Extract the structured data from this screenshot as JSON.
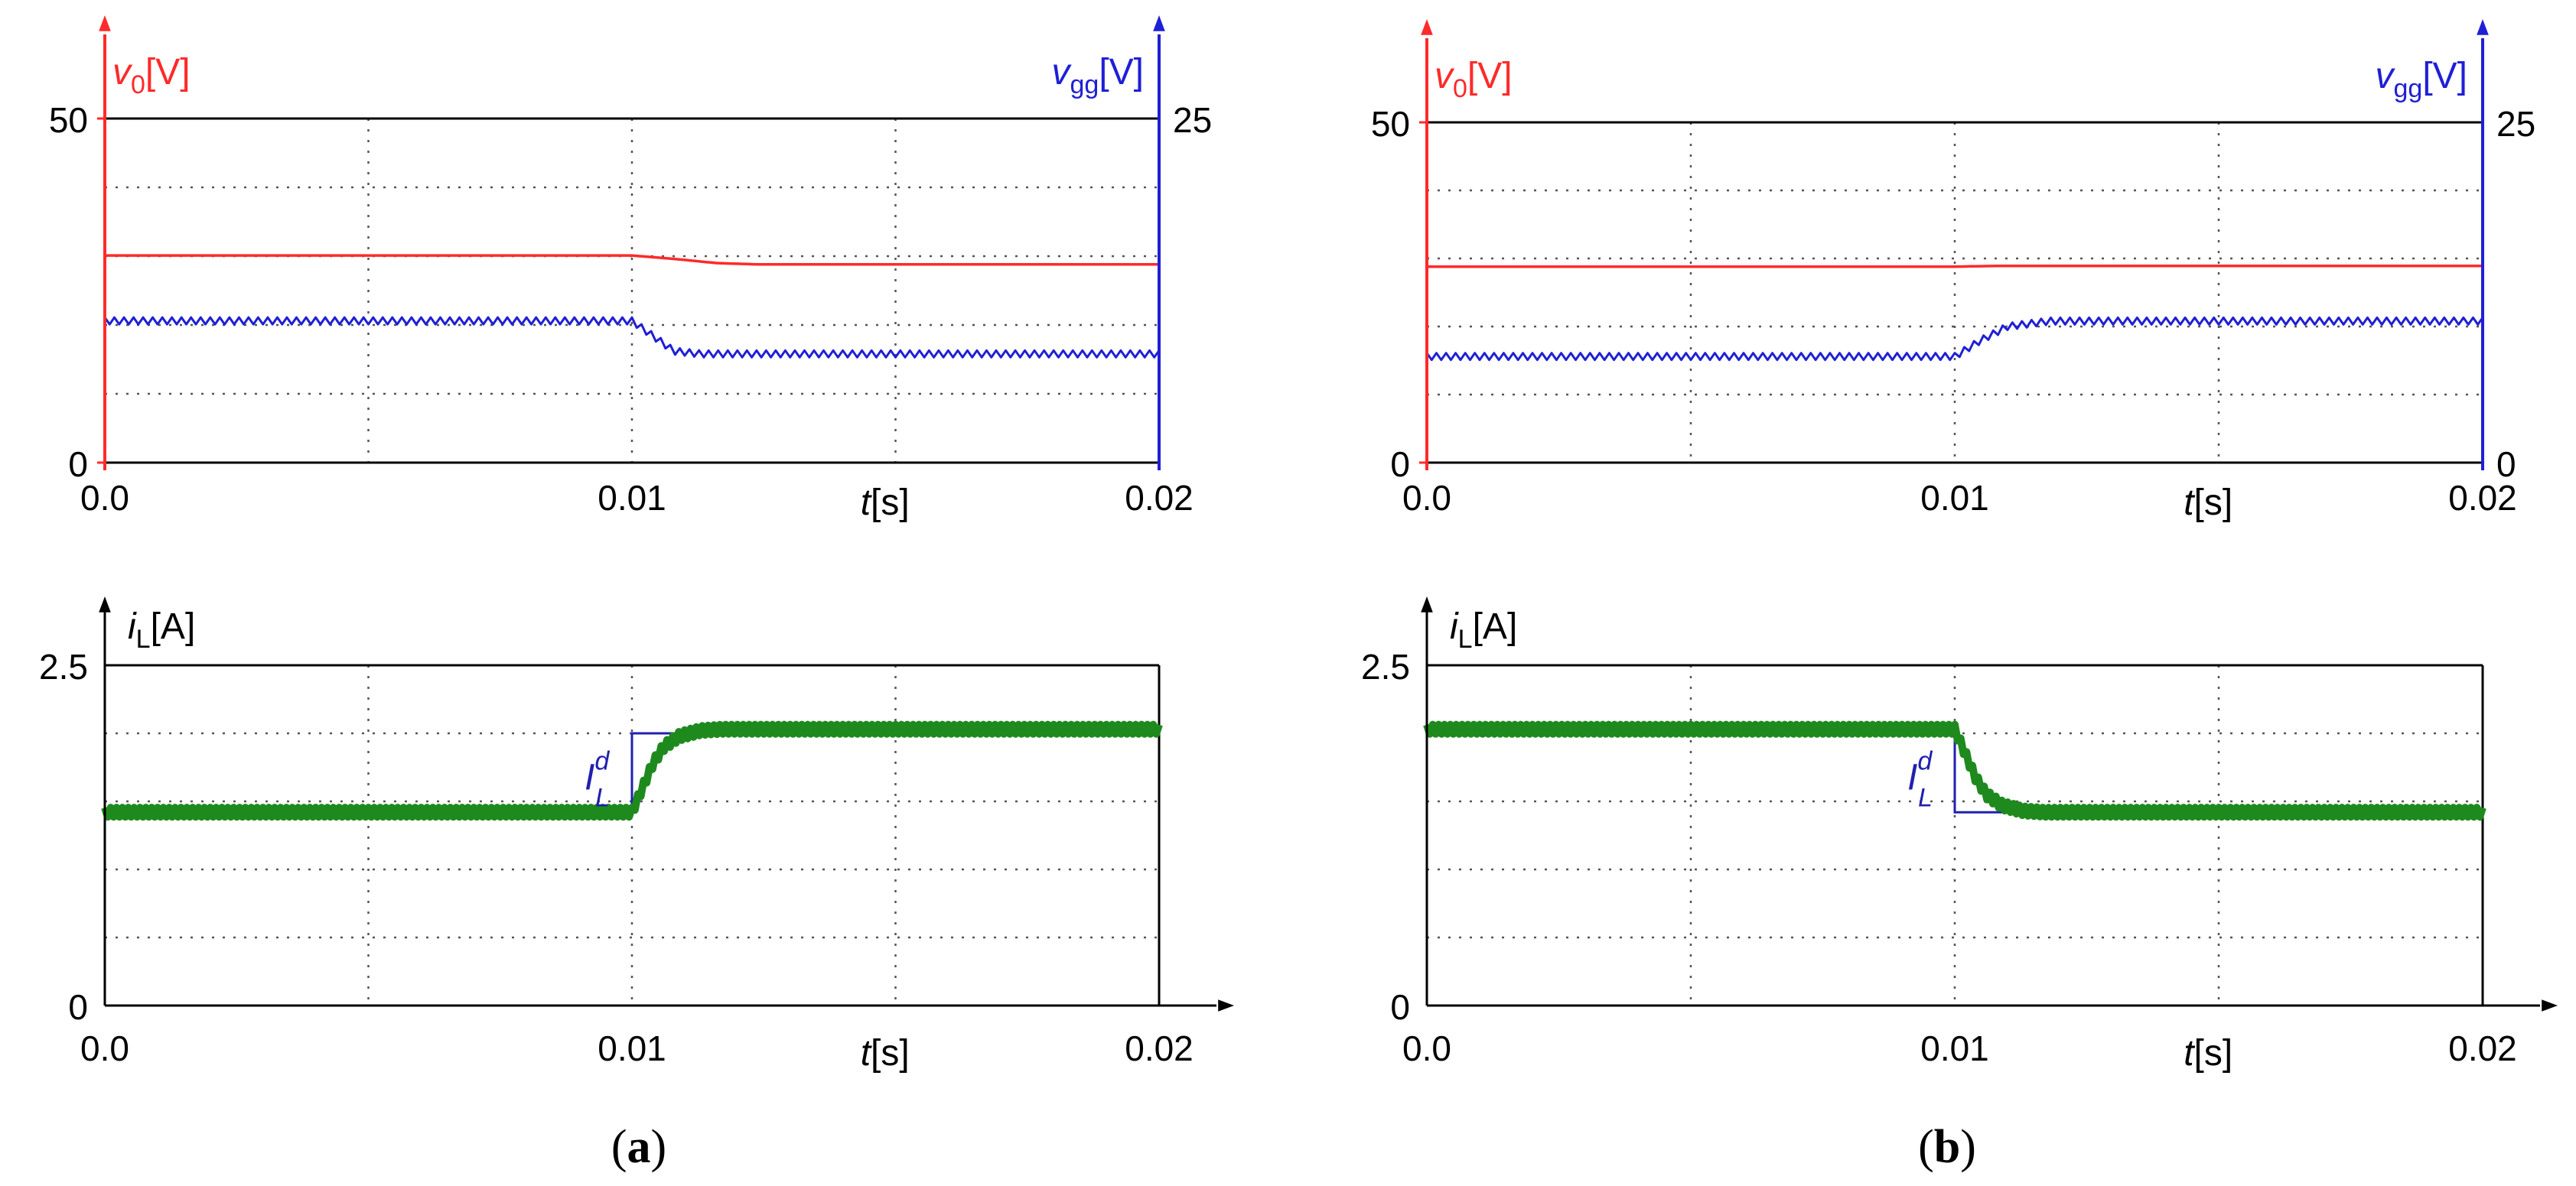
{
  "colors": {
    "v0": "#ff2a2a",
    "vgg": "#1f1fd6",
    "iL": "#1e8a1e",
    "annotation": "#2020b0",
    "axis": "#000000",
    "grid": "#555555"
  },
  "panels": [
    {
      "id": "a",
      "caption": {
        "open": "(",
        "letter": "a",
        "close": ")"
      },
      "voltage_plot": {
        "left_label": {
          "var": "v",
          "sub": "0",
          "unit": "[V]"
        },
        "right_label": {
          "var": "v",
          "sub": "gg",
          "unit": "[V]"
        },
        "left_ticks": [
          {
            "value": 50,
            "label": "50"
          },
          {
            "value": 0,
            "label": "0"
          }
        ],
        "right_ticks": [
          {
            "value": 25,
            "label": "25"
          }
        ],
        "x_ticks": [
          {
            "value": 0.0,
            "label": "0.0"
          },
          {
            "value": 0.01,
            "label": "0.01"
          },
          {
            "value": 0.02,
            "label": "0.02"
          }
        ],
        "xlabel": {
          "var": "t",
          "unit": "[s]"
        }
      },
      "current_plot": {
        "label": {
          "var": "i",
          "sub": "L",
          "unit": "[A]"
        },
        "y_ticks": [
          {
            "value": 2.5,
            "label": "2.5"
          },
          {
            "value": 0,
            "label": "0"
          }
        ],
        "x_ticks": [
          {
            "value": 0.0,
            "label": "0.0"
          },
          {
            "value": 0.01,
            "label": "0.01"
          },
          {
            "value": 0.02,
            "label": "0.02"
          }
        ],
        "xlabel": {
          "var": "t",
          "unit": "[s]"
        },
        "annotation": {
          "var": "I",
          "sub": "L",
          "sup": "d"
        }
      }
    },
    {
      "id": "b",
      "caption": {
        "open": "(",
        "letter": "b",
        "close": ")"
      },
      "voltage_plot": {
        "left_label": {
          "var": "v",
          "sub": "0",
          "unit": "[V]"
        },
        "right_label": {
          "var": "v",
          "sub": "gg",
          "unit": "[V]"
        },
        "left_ticks": [
          {
            "value": 50,
            "label": "50"
          },
          {
            "value": 0,
            "label": "0"
          }
        ],
        "right_ticks": [
          {
            "value": 25,
            "label": "25"
          },
          {
            "value": 0,
            "label": "0"
          }
        ],
        "x_ticks": [
          {
            "value": 0.0,
            "label": "0.0"
          },
          {
            "value": 0.01,
            "label": "0.01"
          },
          {
            "value": 0.02,
            "label": "0.02"
          }
        ],
        "xlabel": {
          "var": "t",
          "unit": "[s]"
        }
      },
      "current_plot": {
        "label": {
          "var": "i",
          "sub": "L",
          "unit": "[A]"
        },
        "y_ticks": [
          {
            "value": 2.5,
            "label": "2.5"
          },
          {
            "value": 0,
            "label": "0"
          }
        ],
        "x_ticks": [
          {
            "value": 0.0,
            "label": "0.0"
          },
          {
            "value": 0.01,
            "label": "0.01"
          },
          {
            "value": 0.02,
            "label": "0.02"
          }
        ],
        "xlabel": {
          "var": "t",
          "unit": "[s]"
        },
        "annotation": {
          "var": "I",
          "sub": "L",
          "sup": "d"
        }
      }
    }
  ],
  "chart_data": [
    {
      "panel": "a",
      "type": "line",
      "title": "",
      "xlabel": "t[s]",
      "ylabel": "v0[V]",
      "ylabel_right": "vgg[V]",
      "xlim": [
        0,
        0.02
      ],
      "ylim": [
        0,
        50
      ],
      "ylim_right": [
        0,
        25
      ],
      "grid": true,
      "step_time": 0.01,
      "series": [
        {
          "name": "v0",
          "axis": "left",
          "x": [
            0,
            0.01,
            0.0108,
            0.0116,
            0.0124,
            0.02
          ],
          "values": [
            30.1,
            30.1,
            29.6,
            29.0,
            28.8,
            28.8
          ]
        },
        {
          "name": "vgg",
          "axis": "right",
          "x": [
            0,
            0.01,
            0.0104,
            0.0108,
            0.0113,
            0.02
          ],
          "values": [
            10.3,
            10.3,
            9.2,
            8.1,
            7.9,
            7.9
          ]
        }
      ]
    },
    {
      "panel": "a",
      "type": "line",
      "title": "",
      "xlabel": "t[s]",
      "ylabel": "iL[A]",
      "xlim": [
        0,
        0.02
      ],
      "ylim": [
        0,
        2.5
      ],
      "grid": true,
      "step_time": 0.01,
      "reference": {
        "name": "I_L^d",
        "before": 1.42,
        "after": 2.0
      },
      "series": [
        {
          "name": "iL",
          "x": [
            0,
            0.01,
            0.0102,
            0.0104,
            0.0106,
            0.0109,
            0.0113,
            0.0117,
            0.02
          ],
          "values": [
            1.42,
            1.42,
            1.6,
            1.78,
            1.9,
            1.98,
            2.02,
            2.03,
            2.03
          ]
        }
      ]
    },
    {
      "panel": "b",
      "type": "line",
      "title": "",
      "xlabel": "t[s]",
      "ylabel": "v0[V]",
      "ylabel_right": "vgg[V]",
      "xlim": [
        0,
        0.02
      ],
      "ylim": [
        0,
        50
      ],
      "ylim_right": [
        0,
        25
      ],
      "grid": true,
      "step_time": 0.01,
      "series": [
        {
          "name": "v0",
          "axis": "left",
          "x": [
            0,
            0.01,
            0.0108,
            0.02
          ],
          "values": [
            28.8,
            28.8,
            28.9,
            28.9
          ]
        },
        {
          "name": "vgg",
          "axis": "right",
          "x": [
            0,
            0.01,
            0.0105,
            0.011,
            0.0118,
            0.02
          ],
          "values": [
            7.8,
            7.8,
            9.0,
            10.0,
            10.4,
            10.4
          ]
        }
      ]
    },
    {
      "panel": "b",
      "type": "line",
      "title": "",
      "xlabel": "t[s]",
      "ylabel": "iL[A]",
      "xlim": [
        0,
        0.02
      ],
      "ylim": [
        0,
        2.5
      ],
      "grid": true,
      "step_time": 0.01,
      "reference": {
        "name": "I_L^d",
        "before": 2.0,
        "after": 1.42
      },
      "series": [
        {
          "name": "iL",
          "x": [
            0,
            0.01,
            0.0102,
            0.0104,
            0.0106,
            0.0109,
            0.0113,
            0.0117,
            0.02
          ],
          "values": [
            2.03,
            2.03,
            1.85,
            1.67,
            1.55,
            1.47,
            1.43,
            1.42,
            1.42
          ]
        }
      ]
    }
  ]
}
